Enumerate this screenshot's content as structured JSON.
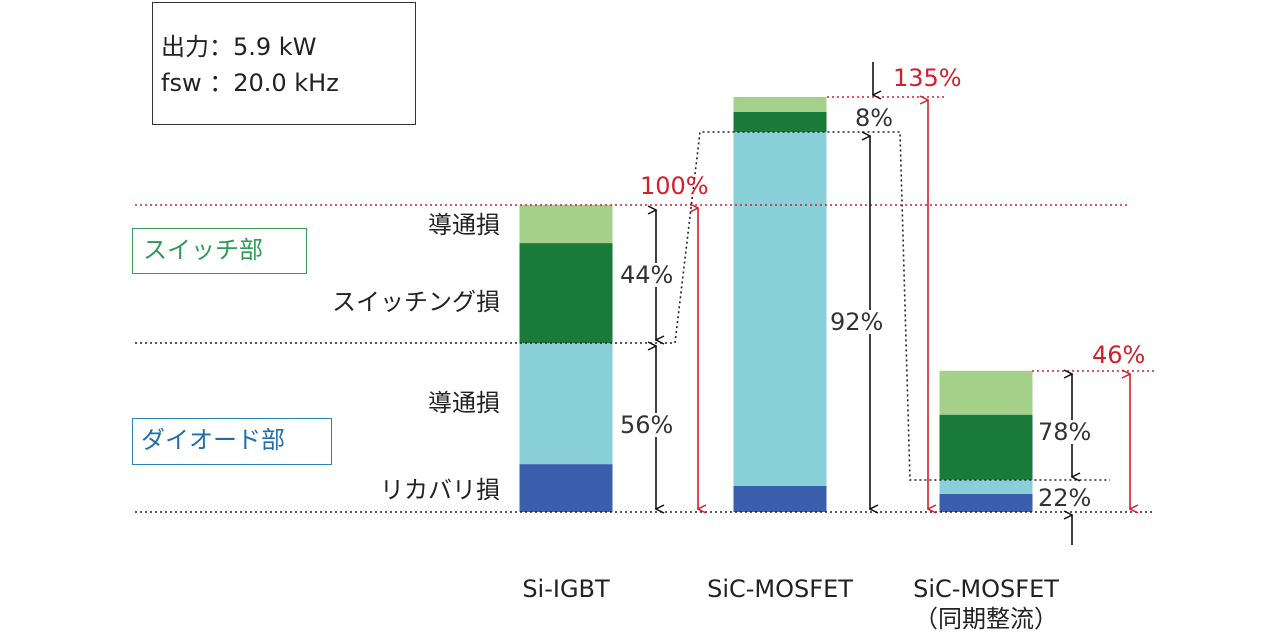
{
  "chart_data": {
    "type": "stacked-bar",
    "info": [
      "出力：5.9 kW",
      "fsw ：20.0 kHz"
    ],
    "categories": [
      "Si-IGBT",
      "SiC-MOSFET",
      "SiC-MOSFET（同期整流）"
    ],
    "groups": [
      "スイッチ部",
      "ダイオード部"
    ],
    "series": [
      {
        "name": "リカバリ損",
        "color": "#3a5fad",
        "values": [
          15.6,
          8.5,
          5.9
        ]
      },
      {
        "name": "導通損",
        "color": "#88cfd8",
        "values": [
          39.4,
          115.3,
          4.6
        ]
      },
      {
        "name": "スイッチング損",
        "color": "#1a7a3a",
        "values": [
          32.6,
          6.5,
          21.2
        ]
      },
      {
        "name": "導通損",
        "color": "#a4d08a",
        "values": [
          12.4,
          4.9,
          14.3
        ]
      }
    ],
    "annotations": [
      "100%",
      "135%",
      "46%",
      "44%",
      "56%",
      "8%",
      "92%",
      "78%",
      "22%"
    ]
  }
}
